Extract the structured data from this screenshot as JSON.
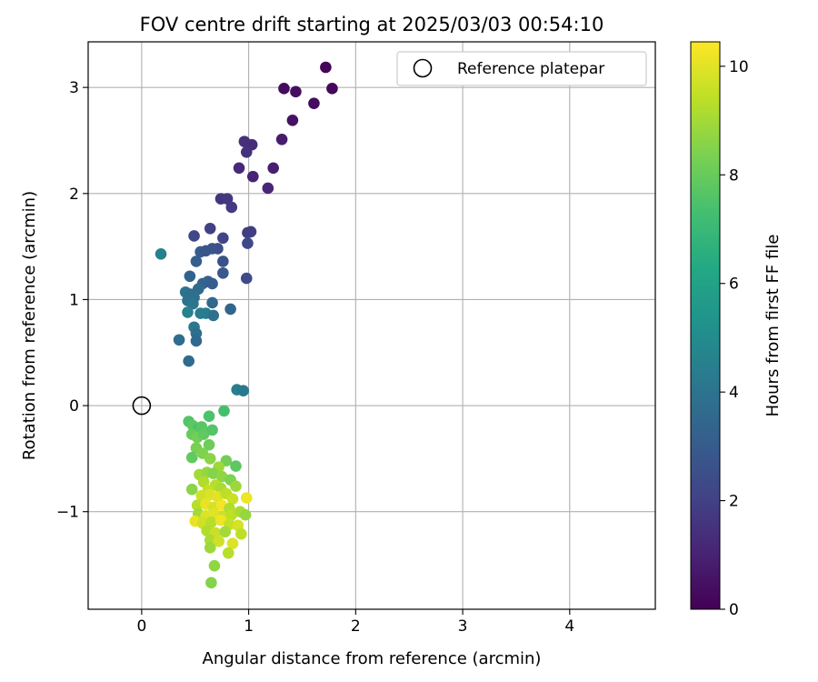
{
  "chart_data": {
    "type": "scatter",
    "title": "FOV centre drift starting at 2025/03/03 00:54:10",
    "xlabel": "Angular distance from reference (arcmin)",
    "ylabel": "Rotation from reference (arcmin)",
    "xlim": [
      -0.5,
      4.8
    ],
    "ylim": [
      -1.92,
      3.43
    ],
    "xticks": [
      0,
      1,
      2,
      3,
      4
    ],
    "yticks": [
      -1,
      0,
      1,
      2,
      3
    ],
    "xtick_labels": [
      "0",
      "1",
      "2",
      "3",
      "4"
    ],
    "ytick_labels": [
      "−1",
      "0",
      "1",
      "2",
      "3"
    ],
    "grid": true,
    "legend": {
      "location": "upper right",
      "entries": [
        {
          "label": "Reference platepar",
          "marker": "open-circle"
        }
      ]
    },
    "reference_point": {
      "x": 0,
      "y": 0
    },
    "colorbar": {
      "label": "Hours from first FF file",
      "range": [
        0,
        10.45
      ],
      "ticks": [
        0,
        2,
        4,
        6,
        8,
        10
      ],
      "tick_labels": [
        "0",
        "2",
        "4",
        "6",
        "8",
        "10"
      ],
      "colormap": "viridis"
    },
    "points": [
      {
        "x": 1.72,
        "y": 3.19,
        "t": 0.1
      },
      {
        "x": 1.33,
        "y": 2.99,
        "t": 0.3
      },
      {
        "x": 1.44,
        "y": 2.96,
        "t": 0.4
      },
      {
        "x": 1.78,
        "y": 2.99,
        "t": 0.2
      },
      {
        "x": 1.61,
        "y": 2.85,
        "t": 0.3
      },
      {
        "x": 1.41,
        "y": 2.69,
        "t": 0.5
      },
      {
        "x": 1.31,
        "y": 2.51,
        "t": 0.8
      },
      {
        "x": 0.96,
        "y": 2.49,
        "t": 1.4
      },
      {
        "x": 1.03,
        "y": 2.46,
        "t": 1.3
      },
      {
        "x": 0.98,
        "y": 2.39,
        "t": 1.5
      },
      {
        "x": 0.91,
        "y": 2.24,
        "t": 1.2
      },
      {
        "x": 1.23,
        "y": 2.24,
        "t": 0.9
      },
      {
        "x": 1.04,
        "y": 2.16,
        "t": 1.0
      },
      {
        "x": 1.18,
        "y": 2.05,
        "t": 1.1
      },
      {
        "x": 0.74,
        "y": 1.95,
        "t": 1.6
      },
      {
        "x": 0.8,
        "y": 1.95,
        "t": 1.7
      },
      {
        "x": 0.84,
        "y": 1.87,
        "t": 1.8
      },
      {
        "x": 0.64,
        "y": 1.67,
        "t": 2.0
      },
      {
        "x": 0.49,
        "y": 1.6,
        "t": 2.2
      },
      {
        "x": 0.76,
        "y": 1.58,
        "t": 2.1
      },
      {
        "x": 0.99,
        "y": 1.63,
        "t": 1.9
      },
      {
        "x": 1.02,
        "y": 1.64,
        "t": 1.9
      },
      {
        "x": 0.99,
        "y": 1.53,
        "t": 2.3
      },
      {
        "x": 0.71,
        "y": 1.48,
        "t": 2.5
      },
      {
        "x": 0.55,
        "y": 1.45,
        "t": 3.0
      },
      {
        "x": 0.66,
        "y": 1.48,
        "t": 2.7
      },
      {
        "x": 0.6,
        "y": 1.46,
        "t": 2.8
      },
      {
        "x": 0.76,
        "y": 1.36,
        "t": 2.6
      },
      {
        "x": 0.51,
        "y": 1.36,
        "t": 3.1
      },
      {
        "x": 0.76,
        "y": 1.25,
        "t": 2.9
      },
      {
        "x": 0.98,
        "y": 1.2,
        "t": 2.4
      },
      {
        "x": 0.45,
        "y": 1.22,
        "t": 3.3
      },
      {
        "x": 0.57,
        "y": 1.15,
        "t": 3.4
      },
      {
        "x": 0.62,
        "y": 1.17,
        "t": 3.2
      },
      {
        "x": 0.66,
        "y": 1.15,
        "t": 3.1
      },
      {
        "x": 0.18,
        "y": 1.43,
        "t": 4.5
      },
      {
        "x": 0.41,
        "y": 1.07,
        "t": 4.0
      },
      {
        "x": 0.46,
        "y": 1.05,
        "t": 3.7
      },
      {
        "x": 0.53,
        "y": 1.1,
        "t": 3.6
      },
      {
        "x": 0.43,
        "y": 0.99,
        "t": 3.9
      },
      {
        "x": 0.49,
        "y": 1.02,
        "t": 3.8
      },
      {
        "x": 0.48,
        "y": 0.96,
        "t": 4.1
      },
      {
        "x": 0.66,
        "y": 0.97,
        "t": 3.5
      },
      {
        "x": 0.43,
        "y": 0.88,
        "t": 4.6
      },
      {
        "x": 0.55,
        "y": 0.87,
        "t": 4.4
      },
      {
        "x": 0.6,
        "y": 0.87,
        "t": 4.3
      },
      {
        "x": 0.67,
        "y": 0.85,
        "t": 3.9
      },
      {
        "x": 0.83,
        "y": 0.91,
        "t": 3.4
      },
      {
        "x": 0.49,
        "y": 0.74,
        "t": 4.2
      },
      {
        "x": 0.51,
        "y": 0.68,
        "t": 3.8
      },
      {
        "x": 0.51,
        "y": 0.61,
        "t": 3.5
      },
      {
        "x": 0.35,
        "y": 0.62,
        "t": 3.7
      },
      {
        "x": 0.44,
        "y": 0.42,
        "t": 3.6
      },
      {
        "x": 0.89,
        "y": 0.15,
        "t": 4.4
      },
      {
        "x": 0.95,
        "y": 0.14,
        "t": 4.2
      },
      {
        "x": 0.44,
        "y": -0.15,
        "t": 7.6
      },
      {
        "x": 0.48,
        "y": -0.19,
        "t": 7.8
      },
      {
        "x": 0.53,
        "y": -0.22,
        "t": 7.4
      },
      {
        "x": 0.56,
        "y": -0.2,
        "t": 7.7
      },
      {
        "x": 0.63,
        "y": -0.1,
        "t": 7.5
      },
      {
        "x": 0.77,
        "y": -0.05,
        "t": 7.3
      },
      {
        "x": 0.47,
        "y": -0.27,
        "t": 8.0
      },
      {
        "x": 0.52,
        "y": -0.3,
        "t": 8.2
      },
      {
        "x": 0.58,
        "y": -0.27,
        "t": 7.9
      },
      {
        "x": 0.66,
        "y": -0.23,
        "t": 7.6
      },
      {
        "x": 0.51,
        "y": -0.4,
        "t": 8.3
      },
      {
        "x": 0.63,
        "y": -0.37,
        "t": 8.1
      },
      {
        "x": 0.57,
        "y": -0.45,
        "t": 8.4
      },
      {
        "x": 0.47,
        "y": -0.49,
        "t": 7.9
      },
      {
        "x": 0.64,
        "y": -0.5,
        "t": 8.6
      },
      {
        "x": 0.79,
        "y": -0.52,
        "t": 8.2
      },
      {
        "x": 0.88,
        "y": -0.57,
        "t": 7.8
      },
      {
        "x": 0.72,
        "y": -0.58,
        "t": 8.9
      },
      {
        "x": 0.54,
        "y": -0.65,
        "t": 9.0
      },
      {
        "x": 0.61,
        "y": -0.63,
        "t": 8.8
      },
      {
        "x": 0.67,
        "y": -0.64,
        "t": 8.5
      },
      {
        "x": 0.75,
        "y": -0.67,
        "t": 8.7
      },
      {
        "x": 0.83,
        "y": -0.7,
        "t": 8.4
      },
      {
        "x": 0.58,
        "y": -0.72,
        "t": 9.2
      },
      {
        "x": 0.69,
        "y": -0.75,
        "t": 9.3
      },
      {
        "x": 0.47,
        "y": -0.79,
        "t": 8.6
      },
      {
        "x": 0.62,
        "y": -0.8,
        "t": 9.5
      },
      {
        "x": 0.74,
        "y": -0.78,
        "t": 9.1
      },
      {
        "x": 0.88,
        "y": -0.76,
        "t": 8.9
      },
      {
        "x": 0.56,
        "y": -0.85,
        "t": 9.7
      },
      {
        "x": 0.64,
        "y": -0.84,
        "t": 9.9
      },
      {
        "x": 0.71,
        "y": -0.86,
        "t": 10.0
      },
      {
        "x": 0.79,
        "y": -0.83,
        "t": 9.4
      },
      {
        "x": 0.85,
        "y": -0.88,
        "t": 9.6
      },
      {
        "x": 0.98,
        "y": -0.87,
        "t": 10.2
      },
      {
        "x": 0.52,
        "y": -0.94,
        "t": 9.3
      },
      {
        "x": 0.6,
        "y": -0.93,
        "t": 10.1
      },
      {
        "x": 0.67,
        "y": -0.96,
        "t": 9.8
      },
      {
        "x": 0.75,
        "y": -0.94,
        "t": 10.3
      },
      {
        "x": 0.82,
        "y": -0.97,
        "t": 9.2
      },
      {
        "x": 0.53,
        "y": -1.02,
        "t": 9.0
      },
      {
        "x": 0.6,
        "y": -1.04,
        "t": 9.9
      },
      {
        "x": 0.68,
        "y": -1.02,
        "t": 10.0
      },
      {
        "x": 0.76,
        "y": -1.05,
        "t": 9.6
      },
      {
        "x": 0.84,
        "y": -1.03,
        "t": 9.4
      },
      {
        "x": 0.92,
        "y": -1.0,
        "t": 9.1
      },
      {
        "x": 0.97,
        "y": -1.03,
        "t": 8.8
      },
      {
        "x": 0.5,
        "y": -1.09,
        "t": 10.1
      },
      {
        "x": 0.57,
        "y": -1.11,
        "t": 9.7
      },
      {
        "x": 0.65,
        "y": -1.1,
        "t": 9.3
      },
      {
        "x": 0.74,
        "y": -1.08,
        "t": 10.2
      },
      {
        "x": 0.82,
        "y": -1.12,
        "t": 9.5
      },
      {
        "x": 0.9,
        "y": -1.13,
        "t": 9.8
      },
      {
        "x": 0.61,
        "y": -1.18,
        "t": 9.2
      },
      {
        "x": 0.69,
        "y": -1.2,
        "t": 9.6
      },
      {
        "x": 0.78,
        "y": -1.19,
        "t": 9.0
      },
      {
        "x": 0.93,
        "y": -1.21,
        "t": 9.4
      },
      {
        "x": 0.64,
        "y": -1.27,
        "t": 9.1
      },
      {
        "x": 0.72,
        "y": -1.28,
        "t": 9.7
      },
      {
        "x": 0.85,
        "y": -1.3,
        "t": 9.9
      },
      {
        "x": 0.64,
        "y": -1.34,
        "t": 8.9
      },
      {
        "x": 0.81,
        "y": -1.39,
        "t": 9.3
      },
      {
        "x": 0.68,
        "y": -1.51,
        "t": 8.7
      },
      {
        "x": 0.65,
        "y": -1.67,
        "t": 8.5
      }
    ]
  }
}
